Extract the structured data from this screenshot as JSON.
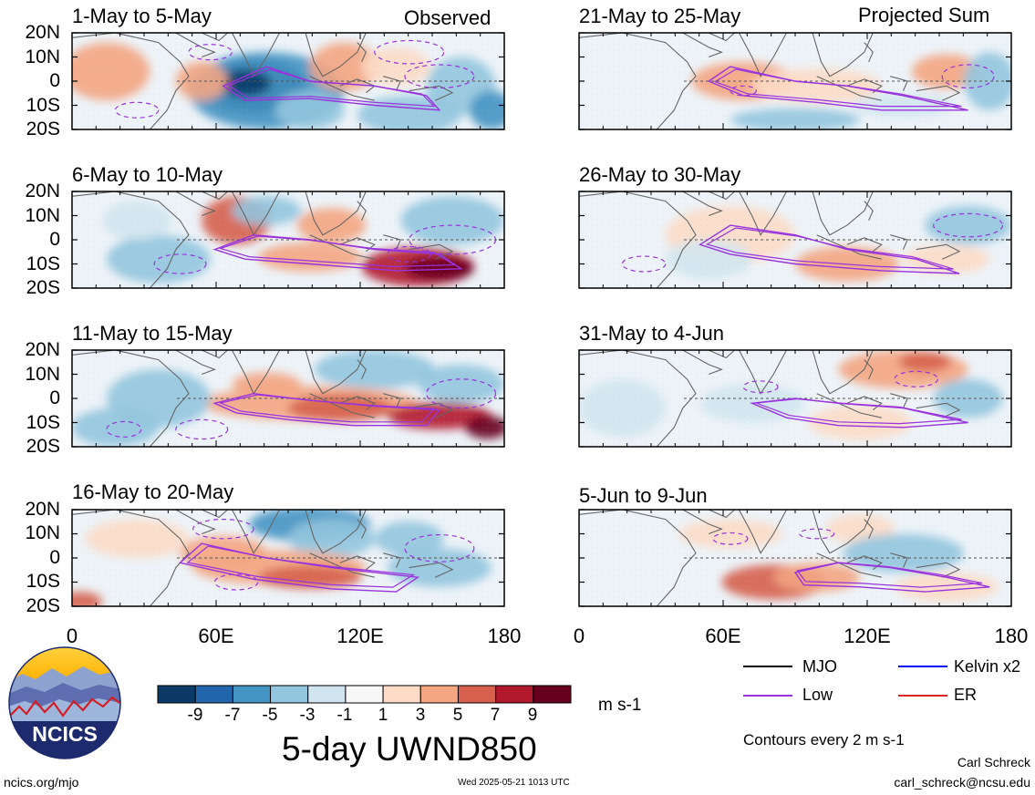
{
  "left_column_type": "Observed",
  "right_column_type": "Projected Sum",
  "panels": [
    {
      "title": "1-May to 5-May"
    },
    {
      "title": "6-May to 10-May"
    },
    {
      "title": "11-May to 15-May"
    },
    {
      "title": "16-May to 20-May"
    },
    {
      "title": "21-May to 25-May"
    },
    {
      "title": "26-May to 30-May"
    },
    {
      "title": "31-May to 4-Jun"
    },
    {
      "title": "5-Jun to 9-Jun"
    }
  ],
  "y_axis_labels": [
    "20N",
    "10N",
    "0",
    "10S",
    "20S"
  ],
  "x_axis_labels": [
    "0",
    "60E",
    "120E",
    "180"
  ],
  "colorbar": {
    "labels": [
      "-9",
      "-7",
      "-5",
      "-3",
      "-1",
      "1",
      "3",
      "5",
      "7",
      "9"
    ],
    "colors": [
      "#0b3a67",
      "#2166ac",
      "#4393c3",
      "#92c5de",
      "#d1e5f0",
      "#f7f7f7",
      "#fddbc7",
      "#f4a582",
      "#d6604d",
      "#b2182b",
      "#67001f"
    ],
    "units": "m s-1"
  },
  "main_title": "5-day UWND850",
  "legend": {
    "items": [
      {
        "label": "MJO",
        "color": "#000000"
      },
      {
        "label": "Kelvin x2",
        "color": "#0000ff"
      },
      {
        "label": "Low",
        "color": "#9933dd"
      },
      {
        "label": "ER",
        "color": "#dd2222"
      }
    ],
    "contour_note": "Contours every 2 m s-1"
  },
  "logo_text": "NCICS",
  "footer": {
    "website": "ncics.org/mjo",
    "timestamp": "Wed 2025-05-21 1013 UTC",
    "author": "Carl Schreck",
    "email": "carl_schreck@ncsu.edu"
  }
}
